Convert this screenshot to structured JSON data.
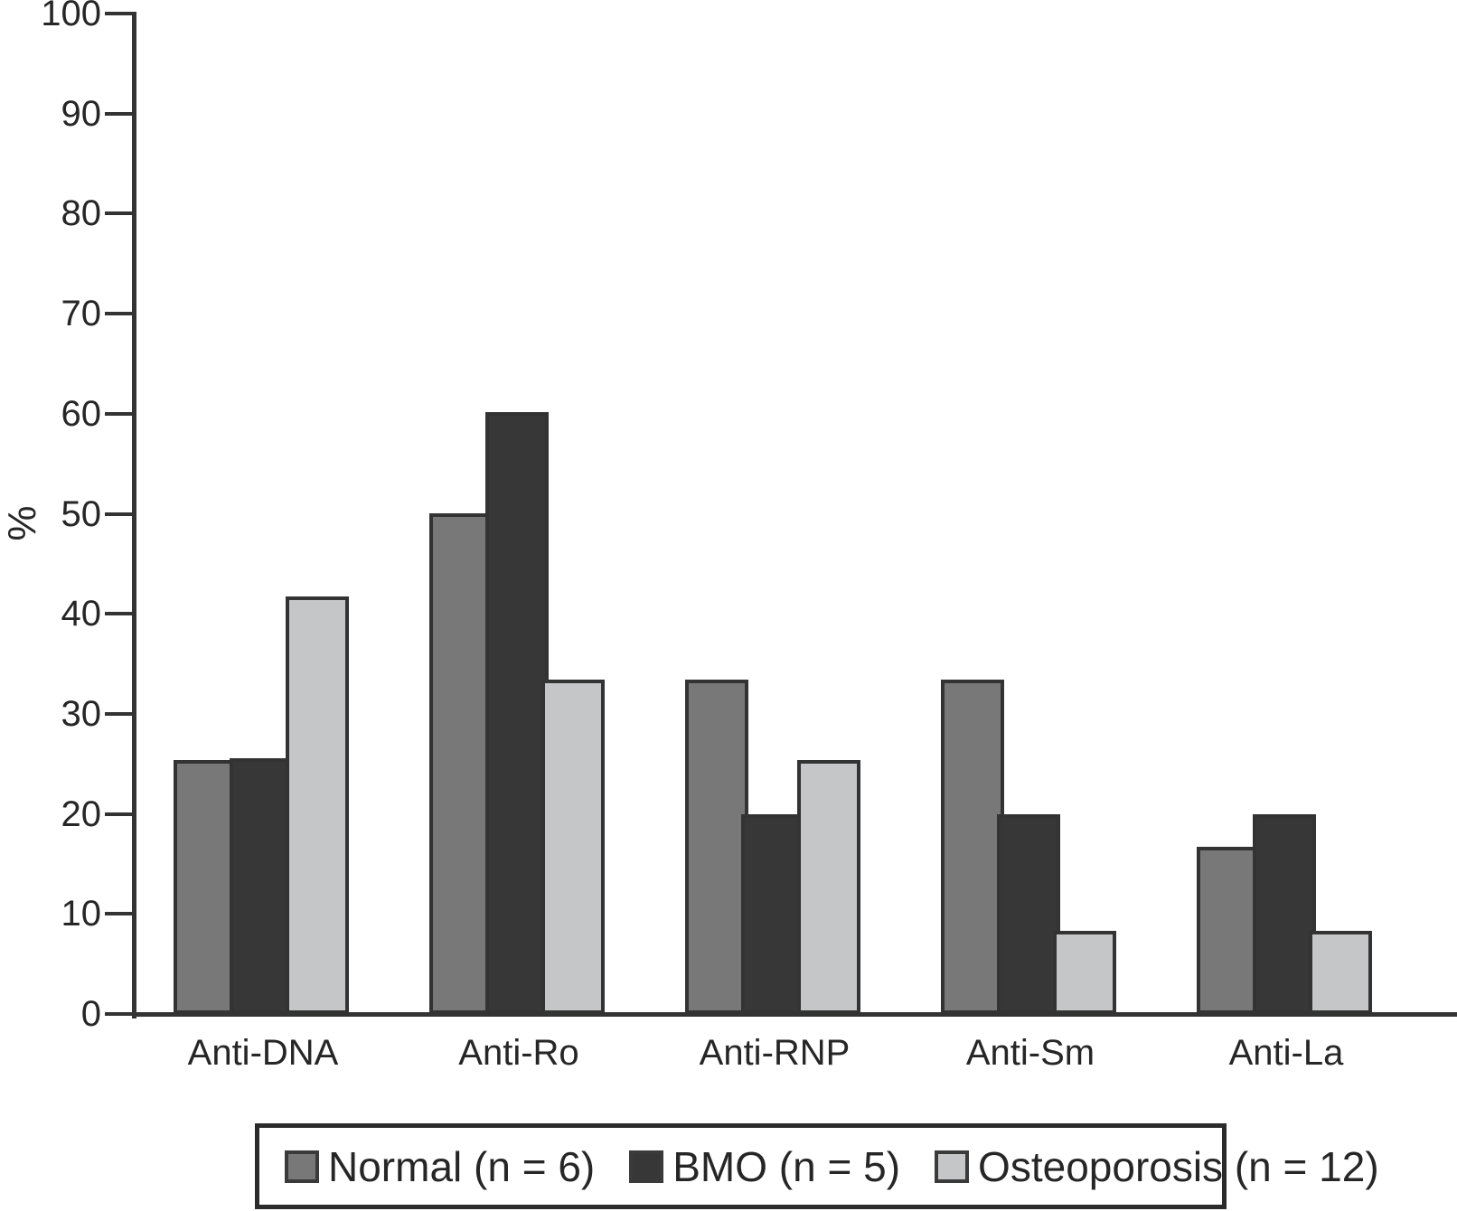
{
  "chart_data": {
    "type": "bar",
    "title": "",
    "xlabel": "",
    "ylabel": "%",
    "categories": [
      "Anti-DNA",
      "Anti-Ro",
      "Anti-RNP",
      "Anti-Sm",
      "Anti-La"
    ],
    "series": [
      {
        "name": "Normal (n = 6)",
        "color": "#787878",
        "values": [
          25.4,
          50.0,
          33.4,
          33.4,
          16.7
        ]
      },
      {
        "name": "BMO (n = 5)",
        "color": "#373737",
        "values": [
          25.6,
          60.2,
          20.0,
          20.0,
          20.0
        ]
      },
      {
        "name": "Osteoporosis (n = 12)",
        "color": "#c5c6c7",
        "values": [
          41.7,
          33.4,
          25.4,
          8.3,
          8.3
        ]
      }
    ],
    "ylim": [
      0,
      100
    ],
    "yticks": [
      0,
      10,
      20,
      30,
      40,
      50,
      60,
      70,
      80,
      90,
      100
    ],
    "grid": false,
    "legend_position": "bottom-box",
    "axis_color": "#333333",
    "bar_border_color": "#333333",
    "text_color": "#262626"
  }
}
